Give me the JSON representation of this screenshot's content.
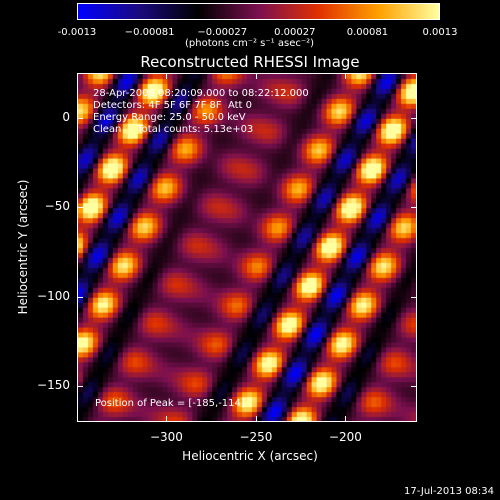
{
  "colorbar": {
    "ticks": [
      "-0.0013",
      "−0.00081",
      "−0.00027",
      "0.00027",
      "0.00081",
      "0.0013"
    ],
    "units": "(photons cm⁻² s⁻¹ asec⁻²)",
    "colors": [
      "#0000ff",
      "#1a0a80",
      "#000000",
      "#7a1050",
      "#e03000",
      "#ffa000",
      "#ffffa0"
    ]
  },
  "title": "Reconstructed RHESSI Image",
  "info": {
    "line1": "28-Apr-2006 08:20:09.000 to 08:22:12.000",
    "line2": "Detectors: 4F 5F 6F 7F 8F  Att 0",
    "line3": "Energy Range: 25.0 - 50.0 keV",
    "line4": "Clean     Total counts: 5.13e+03",
    "peak": "Position of Peak = [-185,-114]"
  },
  "timestamp": "17-Jul-2013 08:34",
  "chart_data": {
    "type": "heatmap",
    "title": "Reconstructed RHESSI Image",
    "xlabel": "Heliocentric X (arcsec)",
    "ylabel": "Heliocentric Y (arcsec)",
    "xlim": [
      -350,
      -160
    ],
    "ylim": [
      -170,
      25
    ],
    "xticks": [
      "−300",
      "−250",
      "−200"
    ],
    "xtick_values": [
      -300,
      -250,
      -200
    ],
    "yticks": [
      "0",
      "−50",
      "−100",
      "−150"
    ],
    "ytick_values": [
      0,
      -50,
      -100,
      -150
    ],
    "value_range": [
      -0.0013,
      0.0013
    ],
    "pattern": "diagonal stripes oriented upper-left to lower-right with alternating positive (yellow/red) and negative (blue/purple) ridges",
    "peak_position": [
      -185,
      -114
    ]
  }
}
